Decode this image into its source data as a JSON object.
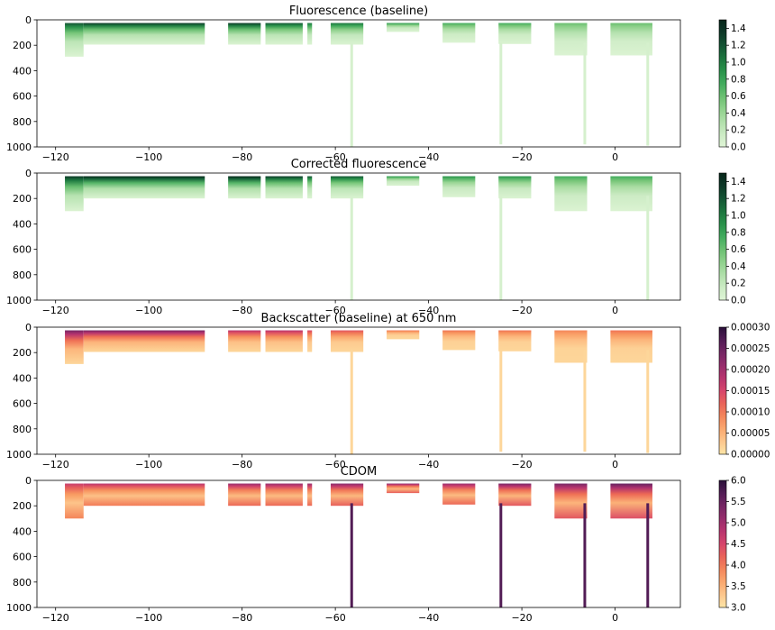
{
  "chart_data": [
    {
      "type": "heatmap",
      "title": "Fluorescence (baseline)",
      "xlim": [
        -124,
        14
      ],
      "ylim": [
        1000,
        0
      ],
      "xticks": [
        -120,
        -100,
        -80,
        -60,
        -40,
        -20,
        0
      ],
      "yticks": [
        0,
        200,
        400,
        600,
        800,
        1000
      ],
      "colorbar": {
        "range": [
          0,
          1.5
        ],
        "ticks": [
          "0.0",
          "0.2",
          "0.4",
          "0.6",
          "0.8",
          "1.0",
          "1.2",
          "1.4"
        ],
        "colormap": "greens"
      },
      "sections": [
        {
          "x": [
            -118,
            -114
          ],
          "max_depth": 290,
          "surface": 0.8
        },
        {
          "x": [
            -114,
            -88
          ],
          "max_depth": 195,
          "surface": 0.9
        },
        {
          "x": [
            -83,
            -76
          ],
          "max_depth": 195,
          "surface": 0.9
        },
        {
          "x": [
            -75,
            -67
          ],
          "max_depth": 195,
          "surface": 0.8
        },
        {
          "x": [
            -66,
            -65
          ],
          "max_depth": 195,
          "surface": 0.7
        },
        {
          "x": [
            -61,
            -54
          ],
          "max_depth": 195,
          "surface": 0.7
        },
        {
          "x": [
            -49,
            -42
          ],
          "max_depth": 95,
          "surface": 0.6
        },
        {
          "x": [
            -37,
            -30
          ],
          "max_depth": 180,
          "surface": 0.5
        },
        {
          "x": [
            -25,
            -18
          ],
          "max_depth": 190,
          "surface": 0.5
        },
        {
          "x": [
            -13,
            -6
          ],
          "max_depth": 280,
          "surface": 0.4
        },
        {
          "x": [
            -1,
            8
          ],
          "max_depth": 280,
          "surface": 0.4
        }
      ],
      "deep_profiles": [
        {
          "x": -56.5,
          "max_depth": 1000
        },
        {
          "x": -24.5,
          "max_depth": 980
        },
        {
          "x": -6.5,
          "max_depth": 980
        },
        {
          "x": 7,
          "max_depth": 990
        }
      ]
    },
    {
      "type": "heatmap",
      "title": "Corrected fluorescence",
      "xlim": [
        -124,
        14
      ],
      "ylim": [
        1000,
        0
      ],
      "xticks": [
        -120,
        -100,
        -80,
        -60,
        -40,
        -20,
        0
      ],
      "yticks": [
        0,
        200,
        400,
        600,
        800,
        1000
      ],
      "colorbar": {
        "range": [
          0,
          1.5
        ],
        "ticks": [
          "0.0",
          "0.2",
          "0.4",
          "0.6",
          "0.8",
          "1.0",
          "1.2",
          "1.4"
        ],
        "colormap": "greens"
      },
      "sections": [
        {
          "x": [
            -118,
            -114
          ],
          "max_depth": 300,
          "surface": 0.9
        },
        {
          "x": [
            -114,
            -88
          ],
          "max_depth": 200,
          "surface": 1.0
        },
        {
          "x": [
            -83,
            -76
          ],
          "max_depth": 200,
          "surface": 1.0
        },
        {
          "x": [
            -75,
            -67
          ],
          "max_depth": 200,
          "surface": 0.9
        },
        {
          "x": [
            -66,
            -65
          ],
          "max_depth": 200,
          "surface": 0.8
        },
        {
          "x": [
            -61,
            -54
          ],
          "max_depth": 200,
          "surface": 0.8
        },
        {
          "x": [
            -49,
            -42
          ],
          "max_depth": 100,
          "surface": 0.6
        },
        {
          "x": [
            -37,
            -30
          ],
          "max_depth": 190,
          "surface": 0.6
        },
        {
          "x": [
            -25,
            -18
          ],
          "max_depth": 200,
          "surface": 0.6
        },
        {
          "x": [
            -13,
            -6
          ],
          "max_depth": 300,
          "surface": 0.5
        },
        {
          "x": [
            -1,
            8
          ],
          "max_depth": 300,
          "surface": 0.5
        }
      ],
      "deep_profiles": [
        {
          "x": -56.5,
          "max_depth": 1000
        },
        {
          "x": -24.5,
          "max_depth": 1000
        },
        {
          "x": 7,
          "max_depth": 1000
        }
      ]
    },
    {
      "type": "heatmap",
      "title": "Backscatter (baseline) at 650 nm",
      "xlim": [
        -124,
        14
      ],
      "ylim": [
        1000,
        0
      ],
      "xticks": [
        -120,
        -100,
        -80,
        -60,
        -40,
        -20,
        0
      ],
      "yticks": [
        0,
        200,
        400,
        600,
        800,
        1000
      ],
      "colorbar": {
        "range": [
          0,
          0.0003
        ],
        "ticks": [
          "0.00000",
          "0.00005",
          "0.00010",
          "0.00015",
          "0.00020",
          "0.00025",
          "0.00030"
        ],
        "colormap": "magma_r"
      },
      "sections": [
        {
          "x": [
            -118,
            -114
          ],
          "max_depth": 290,
          "surface": 0.8
        },
        {
          "x": [
            -114,
            -88
          ],
          "max_depth": 195,
          "surface": 0.8
        },
        {
          "x": [
            -83,
            -76
          ],
          "max_depth": 195,
          "surface": 0.6
        },
        {
          "x": [
            -75,
            -67
          ],
          "max_depth": 195,
          "surface": 0.6
        },
        {
          "x": [
            -66,
            -65
          ],
          "max_depth": 195,
          "surface": 0.5
        },
        {
          "x": [
            -61,
            -54
          ],
          "max_depth": 195,
          "surface": 0.45
        },
        {
          "x": [
            -49,
            -42
          ],
          "max_depth": 95,
          "surface": 0.35
        },
        {
          "x": [
            -37,
            -30
          ],
          "max_depth": 180,
          "surface": 0.35
        },
        {
          "x": [
            -25,
            -18
          ],
          "max_depth": 190,
          "surface": 0.35
        },
        {
          "x": [
            -13,
            -6
          ],
          "max_depth": 280,
          "surface": 0.3
        },
        {
          "x": [
            -1,
            8
          ],
          "max_depth": 280,
          "surface": 0.35
        }
      ],
      "deep_profiles": [
        {
          "x": -56.5,
          "max_depth": 1000
        },
        {
          "x": -24.5,
          "max_depth": 980
        },
        {
          "x": -6.5,
          "max_depth": 980
        },
        {
          "x": 7,
          "max_depth": 990
        }
      ]
    },
    {
      "type": "heatmap",
      "title": "CDOM",
      "xlim": [
        -124,
        14
      ],
      "ylim": [
        1000,
        0
      ],
      "xticks": [
        -120,
        -100,
        -80,
        -60,
        -40,
        -20,
        0
      ],
      "yticks": [
        0,
        200,
        400,
        600,
        800,
        1000
      ],
      "colorbar": {
        "range": [
          3,
          6
        ],
        "ticks": [
          "3.0",
          "3.5",
          "4.0",
          "4.5",
          "5.0",
          "5.5",
          "6.0"
        ],
        "colormap": "magma_r"
      },
      "sections": [
        {
          "x": [
            -118,
            -114
          ],
          "max_depth": 300,
          "surface": 0.55
        },
        {
          "x": [
            -114,
            -88
          ],
          "max_depth": 200,
          "surface": 0.6
        },
        {
          "x": [
            -83,
            -76
          ],
          "max_depth": 200,
          "surface": 0.7
        },
        {
          "x": [
            -75,
            -67
          ],
          "max_depth": 200,
          "surface": 0.7
        },
        {
          "x": [
            -66,
            -65
          ],
          "max_depth": 200,
          "surface": 0.7
        },
        {
          "x": [
            -61,
            -54
          ],
          "max_depth": 200,
          "surface": 0.75
        },
        {
          "x": [
            -49,
            -42
          ],
          "max_depth": 100,
          "surface": 0.75
        },
        {
          "x": [
            -37,
            -30
          ],
          "max_depth": 190,
          "surface": 0.7
        },
        {
          "x": [
            -25,
            -18
          ],
          "max_depth": 200,
          "surface": 0.8
        },
        {
          "x": [
            -13,
            -6
          ],
          "max_depth": 300,
          "surface": 0.8
        },
        {
          "x": [
            -1,
            8
          ],
          "max_depth": 300,
          "surface": 0.85
        }
      ],
      "deep_profiles": [
        {
          "x": -56.5,
          "max_depth": 1000
        },
        {
          "x": -24.5,
          "max_depth": 1000
        },
        {
          "x": -6.5,
          "max_depth": 1000
        },
        {
          "x": 7,
          "max_depth": 1000
        }
      ]
    }
  ],
  "colormaps": {
    "greens": [
      "#dff5d6",
      "#c7e9c0",
      "#a1d99b",
      "#74c476",
      "#41ab5d",
      "#238b45",
      "#17643a",
      "#0f3d2a",
      "#06261a"
    ],
    "magma_r": [
      "#fde5a7",
      "#fdc086",
      "#f8985f",
      "#ee6a54",
      "#d6456c",
      "#b0306e",
      "#852a6a",
      "#5c1f5c",
      "#2a1039"
    ]
  }
}
